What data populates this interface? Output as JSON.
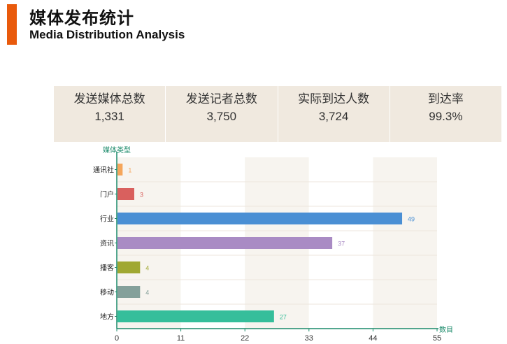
{
  "header": {
    "title_zh": "媒体发布统计",
    "title_en": "Media Distribution Analysis",
    "accent_color": "#e95a0c"
  },
  "stats": [
    {
      "label": "发送媒体总数",
      "value": "1,331"
    },
    {
      "label": "发送记者总数",
      "value": "3,750"
    },
    {
      "label": "实际到达人数",
      "value": "3,724"
    },
    {
      "label": "到达率",
      "value": "99.3%"
    }
  ],
  "chart_data": {
    "type": "bar",
    "orientation": "horizontal",
    "ylabel": "媒体类型",
    "xlabel": "数目",
    "xlim": [
      0,
      55
    ],
    "xticks": [
      0,
      11,
      22,
      33,
      44,
      55
    ],
    "categories": [
      "通讯社",
      "门户",
      "行业",
      "资讯",
      "播客",
      "移动",
      "地方"
    ],
    "values": [
      1,
      3,
      49,
      37,
      4,
      4,
      27
    ],
    "colors": [
      "#f5a65b",
      "#d9605e",
      "#4a8fd4",
      "#a98bc4",
      "#a0a832",
      "#84a09a",
      "#36be9b"
    ],
    "data_labels": true,
    "grid": "alternating vertical bands"
  }
}
